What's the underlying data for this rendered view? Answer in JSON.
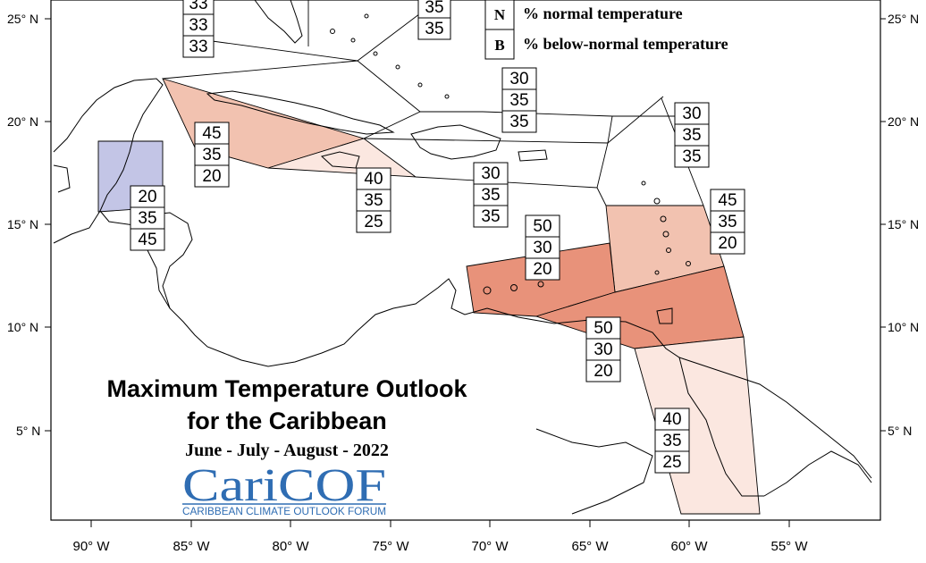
{
  "map": {
    "title_line1": "Maximum Temperature Outlook",
    "title_line2": "for the Caribbean",
    "season": "June - July - August - 2022",
    "logo": {
      "name": "CariCOF",
      "tagline": "CARIBBEAN CLIMATE OUTLOOK FORUM"
    },
    "legend": [
      {
        "letter": "N",
        "text": "% normal temperature"
      },
      {
        "letter": "B",
        "text": "% below-normal temperature"
      }
    ],
    "lat_labels": [
      "25° N",
      "20° N",
      "15° N",
      "10° N",
      "5° N"
    ],
    "lon_labels": [
      "90° W",
      "85° W",
      "80° W",
      "75° W",
      "70° W",
      "65° W",
      "60° W",
      "55° W"
    ],
    "colors": {
      "above_45": "#f2c2b0",
      "above_50": "#e8927a",
      "above_40": "#fbe7e0",
      "below_45": "#c3c5e6",
      "outline": "#000000"
    },
    "regions": [
      {
        "name": "northwest-top",
        "values": [
          "33",
          "33",
          "33"
        ]
      },
      {
        "name": "bahamas-top",
        "values": [
          "35",
          "35"
        ]
      },
      {
        "name": "cuba-region",
        "values": [
          "45",
          "35",
          "20"
        ]
      },
      {
        "name": "jamaica-region",
        "values": [
          "40",
          "35",
          "25"
        ]
      },
      {
        "name": "hispaniola-region",
        "values": [
          "30",
          "35",
          "35"
        ]
      },
      {
        "name": "turks-region",
        "values": [
          "30",
          "35",
          "35"
        ]
      },
      {
        "name": "northern-lesser-antilles",
        "values": [
          "30",
          "35",
          "35"
        ]
      },
      {
        "name": "belize-region",
        "values": [
          "20",
          "35",
          "45"
        ]
      },
      {
        "name": "leeward-islands",
        "values": [
          "45",
          "35",
          "20"
        ]
      },
      {
        "name": "abc-islands",
        "values": [
          "50",
          "30",
          "20"
        ]
      },
      {
        "name": "trinidad-region",
        "values": [
          "50",
          "30",
          "20"
        ]
      },
      {
        "name": "guianas-region",
        "values": [
          "40",
          "35",
          "25"
        ]
      }
    ]
  }
}
